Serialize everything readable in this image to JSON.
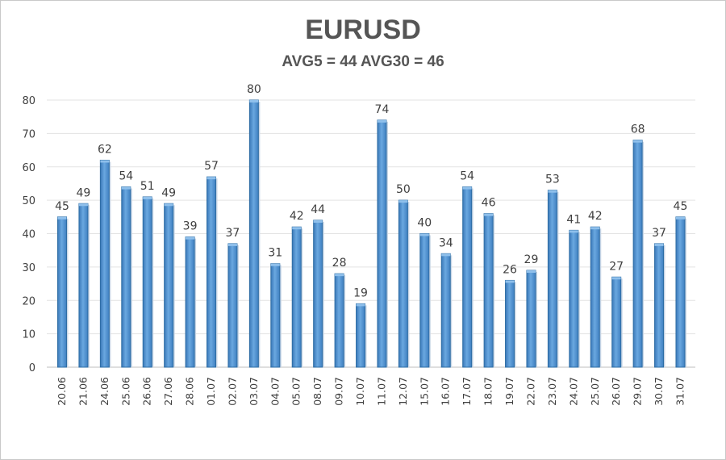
{
  "chart_data": {
    "type": "bar",
    "title": "EURUSD",
    "subtitle": "AVG5 = 44 AVG30 = 46",
    "xlabel": "",
    "ylabel": "",
    "ylim": [
      0,
      80
    ],
    "yticks": [
      0,
      10,
      20,
      30,
      40,
      50,
      60,
      70,
      80
    ],
    "grid": true,
    "legend": "none",
    "bar_color": "#5b9bd5",
    "bar_edge_color": "#2e6da4",
    "categories": [
      "20.06",
      "21.06",
      "24.06",
      "25.06",
      "26.06",
      "27.06",
      "28.06",
      "01.07",
      "02.07",
      "03.07",
      "04.07",
      "05.07",
      "08.07",
      "09.07",
      "10.07",
      "11.07",
      "12.07",
      "15.07",
      "16.07",
      "17.07",
      "18.07",
      "19.07",
      "22.07",
      "23.07",
      "24.07",
      "25.07",
      "26.07",
      "29.07",
      "30.07",
      "31.07"
    ],
    "values": [
      45,
      49,
      62,
      54,
      51,
      49,
      39,
      57,
      37,
      80,
      31,
      42,
      44,
      28,
      19,
      74,
      50,
      40,
      34,
      54,
      46,
      26,
      29,
      53,
      41,
      42,
      27,
      68,
      37,
      45
    ]
  }
}
